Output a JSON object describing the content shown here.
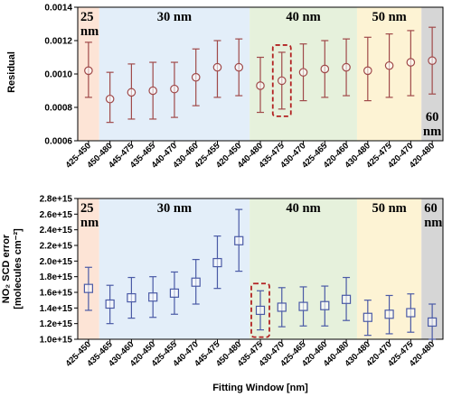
{
  "chart_data": [
    {
      "type": "scatter",
      "ylabel": "Residual",
      "xlabel": "",
      "ylim": [
        0.0006,
        0.0014
      ],
      "yticks": [
        "0.0006",
        "0.0008",
        "0.0010",
        "0.0012",
        "0.0014"
      ],
      "categories": [
        "425-450",
        "450-480",
        "445-475",
        "435-465",
        "440-470",
        "430-460",
        "425-455",
        "420-450",
        "440-480",
        "435-475",
        "430-470",
        "425-465",
        "420-460",
        "430-480",
        "425-475",
        "420-470",
        "420-480"
      ],
      "values": [
        0.00102,
        0.00085,
        0.00089,
        0.0009,
        0.00091,
        0.00098,
        0.00104,
        0.00104,
        0.00093,
        0.00096,
        0.00101,
        0.00103,
        0.00104,
        0.00102,
        0.00105,
        0.00107,
        0.00108
      ],
      "error_low": [
        0.00086,
        0.00071,
        0.00073,
        0.00073,
        0.00074,
        0.00081,
        0.00086,
        0.00087,
        0.00077,
        0.00079,
        0.00084,
        0.00086,
        0.00087,
        0.00084,
        0.00086,
        0.00087,
        0.00088
      ],
      "error_high": [
        0.00119,
        0.00101,
        0.00106,
        0.00107,
        0.00107,
        0.00115,
        0.0012,
        0.00121,
        0.0011,
        0.00113,
        0.00118,
        0.0012,
        0.00121,
        0.00122,
        0.00124,
        0.00126,
        0.00128
      ],
      "marker": "circle",
      "color": "#a04a4a",
      "highlight_index": 9,
      "regions": [
        {
          "label_lines": [
            "25",
            "nm"
          ],
          "start": 0,
          "end": 0,
          "color": "#fde4d6",
          "label_pos": "top-left"
        },
        {
          "label_lines": [
            "30 nm"
          ],
          "start": 1,
          "end": 7,
          "color": "#e3eef9",
          "label_pos": "top"
        },
        {
          "label_lines": [
            "40 nm"
          ],
          "start": 8,
          "end": 12,
          "color": "#e6f1dc",
          "label_pos": "top"
        },
        {
          "label_lines": [
            "50 nm"
          ],
          "start": 13,
          "end": 15,
          "color": "#fdf3d4",
          "label_pos": "top"
        },
        {
          "label_lines": [
            "60",
            "nm"
          ],
          "start": 16,
          "end": 16,
          "color": "#d6d6d6",
          "label_pos": "bottom"
        }
      ]
    },
    {
      "type": "scatter",
      "ylabel_lines": [
        "NO₂ SCD error",
        "[molecules cm⁻²]"
      ],
      "xlabel": "Fitting Window [nm]",
      "ylim": [
        1000000000000000.0,
        2800000000000000.0
      ],
      "yticks": [
        "1.0e+15",
        "1.2e+15",
        "1.4e+15",
        "1.6e+15",
        "1.8e+15",
        "2.0e+15",
        "2.2e+15",
        "2.4e+15",
        "2.6e+15",
        "2.8e+15"
      ],
      "categories": [
        "425-450",
        "435-465",
        "430-460",
        "420-450",
        "425-455",
        "440-470",
        "445-475",
        "450-480",
        "435-475",
        "430-470",
        "425-465",
        "420-460",
        "440-480",
        "430-480",
        "420-470",
        "425-475",
        "420-480"
      ],
      "values": [
        1650000000000000.0,
        1450000000000000.0,
        1530000000000000.0,
        1540000000000000.0,
        1590000000000000.0,
        1730000000000000.0,
        1980000000000000.0,
        2260000000000000.0,
        1370000000000000.0,
        1410000000000000.0,
        1420000000000000.0,
        1430000000000000.0,
        1510000000000000.0,
        1280000000000000.0,
        1320000000000000.0,
        1340000000000000.0,
        1220000000000000.0
      ],
      "error_low": [
        1370000000000000.0,
        1200000000000000.0,
        1270000000000000.0,
        1280000000000000.0,
        1320000000000000.0,
        1450000000000000.0,
        1650000000000000.0,
        1870000000000000.0,
        1120000000000000.0,
        1160000000000000.0,
        1170000000000000.0,
        1170000000000000.0,
        1240000000000000.0,
        1050000000000000.0,
        1070000000000000.0,
        1090000000000000.0,
        1000000000000000.0
      ],
      "error_high": [
        1920000000000000.0,
        1690000000000000.0,
        1790000000000000.0,
        1800000000000000.0,
        1860000000000000.0,
        2020000000000000.0,
        2320000000000000.0,
        2660000000000000.0,
        1620000000000000.0,
        1660000000000000.0,
        1670000000000000.0,
        1680000000000000.0,
        1790000000000000.0,
        1500000000000000.0,
        1560000000000000.0,
        1580000000000000.0,
        1450000000000000.0
      ],
      "marker": "square",
      "color": "#4a5aa6",
      "highlight_index": 8,
      "regions": [
        {
          "label_lines": [
            "25",
            "nm"
          ],
          "start": 0,
          "end": 0,
          "color": "#fde4d6",
          "label_pos": "top-left"
        },
        {
          "label_lines": [
            "30 nm"
          ],
          "start": 1,
          "end": 7,
          "color": "#e3eef9",
          "label_pos": "top"
        },
        {
          "label_lines": [
            "40 nm"
          ],
          "start": 8,
          "end": 12,
          "color": "#e6f1dc",
          "label_pos": "top"
        },
        {
          "label_lines": [
            "50 nm"
          ],
          "start": 13,
          "end": 15,
          "color": "#fdf3d4",
          "label_pos": "top"
        },
        {
          "label_lines": [
            "60",
            "nm"
          ],
          "start": 16,
          "end": 16,
          "color": "#d6d6d6",
          "label_pos": "top-left"
        }
      ]
    }
  ]
}
